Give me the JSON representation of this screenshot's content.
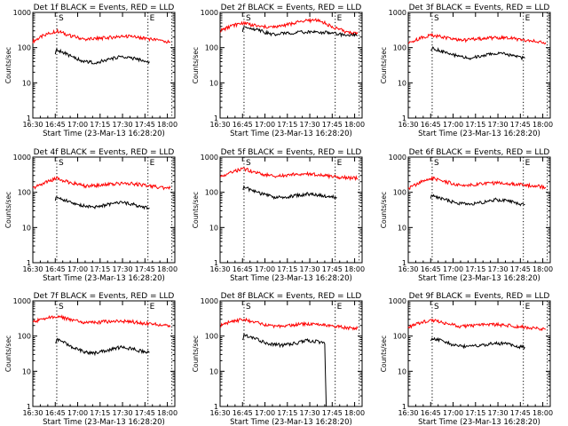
{
  "chart_data": [
    {
      "type": "line",
      "title": "Det 1f BLACK = Events, RED = LLD",
      "xlabel": "Start Time (23-Mar-13 16:28:20)",
      "ylabel": "Counts/sec",
      "xlim": [
        "16:30",
        "18:05"
      ],
      "ylim": [
        1,
        1000
      ],
      "yscale": "log",
      "grid": false,
      "x_ticks": [
        "16:30",
        "16:45",
        "17:00",
        "17:15",
        "17:30",
        "17:45",
        "18:00"
      ],
      "y_ticks": [
        "1",
        "10",
        "100",
        "1000"
      ],
      "markers": [
        {
          "label": "S",
          "time": "16:46"
        },
        {
          "label": "E",
          "time": "17:47"
        }
      ],
      "series": [
        {
          "color": "#ff0000",
          "times": [
            "16:30",
            "16:38",
            "16:46",
            "16:55",
            "17:05",
            "17:15",
            "17:25",
            "17:35",
            "17:45",
            "17:55",
            "18:02"
          ],
          "values": [
            150,
            230,
            300,
            220,
            170,
            185,
            200,
            210,
            185,
            160,
            140
          ]
        },
        {
          "color": "#000000",
          "times": [
            "16:45",
            "16:46",
            "16:50",
            "16:58",
            "17:05",
            "17:12",
            "17:20",
            "17:28",
            "17:35",
            "17:42",
            "17:48"
          ],
          "values": [
            70,
            85,
            75,
            50,
            40,
            38,
            45,
            55,
            52,
            45,
            40
          ]
        }
      ]
    },
    {
      "type": "line",
      "title": "Det 2f BLACK = Events, RED = LLD",
      "xlabel": "Start Time (23-Mar-13 16:28:20)",
      "ylabel": "Counts/sec",
      "xlim": [
        "16:30",
        "18:05"
      ],
      "ylim": [
        1,
        1000
      ],
      "yscale": "log",
      "grid": false,
      "x_ticks": [
        "16:30",
        "16:45",
        "17:00",
        "17:15",
        "17:30",
        "17:45",
        "18:00"
      ],
      "y_ticks": [
        "1",
        "10",
        "100",
        "1000"
      ],
      "markers": [
        {
          "label": "S",
          "time": "16:46"
        },
        {
          "label": "E",
          "time": "17:47"
        }
      ],
      "series": [
        {
          "color": "#ff0000",
          "times": [
            "16:30",
            "16:38",
            "16:46",
            "16:55",
            "17:05",
            "17:15",
            "17:25",
            "17:35",
            "17:45",
            "17:55",
            "18:02"
          ],
          "values": [
            300,
            420,
            520,
            400,
            380,
            450,
            560,
            620,
            400,
            270,
            250
          ]
        },
        {
          "color": "#000000",
          "times": [
            "16:45",
            "16:46",
            "16:50",
            "16:58",
            "17:05",
            "17:12",
            "17:20",
            "17:28",
            "17:35",
            "17:42",
            "17:48",
            "17:55",
            "18:02"
          ],
          "values": [
            290,
            360,
            360,
            290,
            240,
            250,
            270,
            280,
            280,
            265,
            245,
            230,
            220
          ]
        }
      ]
    },
    {
      "type": "line",
      "title": "Det 3f BLACK = Events, RED = LLD",
      "xlabel": "Start Time (23-Mar-13 16:28:20)",
      "ylabel": "Counts/sec",
      "xlim": [
        "16:30",
        "18:05"
      ],
      "ylim": [
        1,
        1000
      ],
      "yscale": "log",
      "grid": false,
      "x_ticks": [
        "16:30",
        "16:45",
        "17:00",
        "17:15",
        "17:30",
        "17:45",
        "18:00"
      ],
      "y_ticks": [
        "1",
        "10",
        "100",
        "1000"
      ],
      "markers": [
        {
          "label": "S",
          "time": "16:46"
        },
        {
          "label": "E",
          "time": "17:47"
        }
      ],
      "series": [
        {
          "color": "#ff0000",
          "times": [
            "16:30",
            "16:38",
            "16:46",
            "16:55",
            "17:05",
            "17:15",
            "17:25",
            "17:35",
            "17:45",
            "17:55",
            "18:02"
          ],
          "values": [
            130,
            190,
            230,
            190,
            160,
            175,
            190,
            195,
            170,
            150,
            140
          ]
        },
        {
          "color": "#000000",
          "times": [
            "16:45",
            "16:46",
            "16:50",
            "16:58",
            "17:05",
            "17:12",
            "17:20",
            "17:28",
            "17:35",
            "17:42",
            "17:48"
          ],
          "values": [
            85,
            100,
            85,
            65,
            55,
            50,
            60,
            70,
            65,
            55,
            50
          ]
        }
      ]
    },
    {
      "type": "line",
      "title": "Det 4f BLACK = Events, RED = LLD",
      "xlabel": "Start Time (23-Mar-13 16:28:20)",
      "ylabel": "Counts/sec",
      "xlim": [
        "16:30",
        "18:05"
      ],
      "ylim": [
        1,
        1000
      ],
      "yscale": "log",
      "grid": false,
      "x_ticks": [
        "16:30",
        "16:45",
        "17:00",
        "17:15",
        "17:30",
        "17:45",
        "18:00"
      ],
      "y_ticks": [
        "1",
        "10",
        "100",
        "1000"
      ],
      "markers": [
        {
          "label": "S",
          "time": "16:46"
        },
        {
          "label": "E",
          "time": "17:47"
        }
      ],
      "series": [
        {
          "color": "#ff0000",
          "times": [
            "16:30",
            "16:38",
            "16:46",
            "16:55",
            "17:05",
            "17:15",
            "17:25",
            "17:35",
            "17:45",
            "17:55",
            "18:02"
          ],
          "values": [
            130,
            190,
            250,
            190,
            150,
            160,
            175,
            180,
            160,
            140,
            130
          ]
        },
        {
          "color": "#000000",
          "times": [
            "16:45",
            "16:46",
            "16:50",
            "16:58",
            "17:05",
            "17:12",
            "17:20",
            "17:28",
            "17:35",
            "17:42",
            "17:48"
          ],
          "values": [
            60,
            75,
            62,
            48,
            40,
            38,
            45,
            50,
            48,
            40,
            36
          ]
        }
      ]
    },
    {
      "type": "line",
      "title": "Det 5f BLACK = Events, RED = LLD",
      "xlabel": "Start Time (23-Mar-13 16:28:20)",
      "ylabel": "Counts/sec",
      "xlim": [
        "16:30",
        "18:05"
      ],
      "ylim": [
        1,
        1000
      ],
      "yscale": "log",
      "grid": false,
      "x_ticks": [
        "16:30",
        "16:45",
        "17:00",
        "17:15",
        "17:30",
        "17:45",
        "18:00"
      ],
      "y_ticks": [
        "1",
        "10",
        "100",
        "1000"
      ],
      "markers": [
        {
          "label": "S",
          "time": "16:46"
        },
        {
          "label": "E",
          "time": "17:47"
        }
      ],
      "series": [
        {
          "color": "#ff0000",
          "times": [
            "16:30",
            "16:38",
            "16:46",
            "16:55",
            "17:05",
            "17:15",
            "17:25",
            "17:35",
            "17:45",
            "17:55",
            "18:02"
          ],
          "values": [
            270,
            380,
            470,
            350,
            290,
            310,
            340,
            320,
            280,
            260,
            250
          ]
        },
        {
          "color": "#000000",
          "times": [
            "16:45",
            "16:46",
            "16:50",
            "16:58",
            "17:05",
            "17:12",
            "17:20",
            "17:28",
            "17:35",
            "17:42",
            "17:48"
          ],
          "values": [
            110,
            140,
            120,
            90,
            75,
            70,
            80,
            90,
            85,
            78,
            72
          ]
        }
      ]
    },
    {
      "type": "line",
      "title": "Det 6f BLACK = Events, RED = LLD",
      "xlabel": "Start Time (23-Mar-13 16:28:20)",
      "ylabel": "Counts/sec",
      "xlim": [
        "16:30",
        "18:05"
      ],
      "ylim": [
        1,
        1000
      ],
      "yscale": "log",
      "grid": false,
      "x_ticks": [
        "16:30",
        "16:45",
        "17:00",
        "17:15",
        "17:30",
        "17:45",
        "18:00"
      ],
      "y_ticks": [
        "1",
        "10",
        "100",
        "1000"
      ],
      "markers": [
        {
          "label": "S",
          "time": "16:46"
        },
        {
          "label": "E",
          "time": "17:47"
        }
      ],
      "series": [
        {
          "color": "#ff0000",
          "times": [
            "16:30",
            "16:38",
            "16:46",
            "16:55",
            "17:05",
            "17:15",
            "17:25",
            "17:35",
            "17:45",
            "17:55",
            "18:02"
          ],
          "values": [
            130,
            190,
            250,
            200,
            160,
            170,
            185,
            180,
            165,
            150,
            140
          ]
        },
        {
          "color": "#000000",
          "times": [
            "16:45",
            "16:46",
            "16:50",
            "16:58",
            "17:05",
            "17:12",
            "17:20",
            "17:28",
            "17:35",
            "17:42",
            "17:48"
          ],
          "values": [
            70,
            85,
            72,
            55,
            48,
            45,
            52,
            62,
            58,
            50,
            45
          ]
        }
      ]
    },
    {
      "type": "line",
      "title": "Det 7f BLACK = Events, RED = LLD",
      "xlabel": "Start Time (23-Mar-13 16:28:20)",
      "ylabel": "Counts/sec",
      "xlim": [
        "16:30",
        "18:05"
      ],
      "ylim": [
        1,
        1000
      ],
      "yscale": "log",
      "grid": false,
      "x_ticks": [
        "16:30",
        "16:45",
        "17:00",
        "17:15",
        "17:30",
        "17:45",
        "18:00"
      ],
      "y_ticks": [
        "1",
        "10",
        "100",
        "1000"
      ],
      "markers": [
        {
          "label": "S",
          "time": "16:46"
        },
        {
          "label": "E",
          "time": "17:47"
        }
      ],
      "series": [
        {
          "color": "#ff0000",
          "times": [
            "16:30",
            "16:38",
            "16:46",
            "16:55",
            "17:05",
            "17:15",
            "17:25",
            "17:35",
            "17:45",
            "17:55",
            "18:02"
          ],
          "values": [
            250,
            320,
            370,
            300,
            240,
            250,
            270,
            260,
            230,
            210,
            200
          ]
        },
        {
          "color": "#000000",
          "times": [
            "16:45",
            "16:46",
            "16:50",
            "16:58",
            "17:05",
            "17:12",
            "17:20",
            "17:28",
            "17:35",
            "17:42",
            "17:48"
          ],
          "values": [
            65,
            80,
            68,
            45,
            35,
            33,
            40,
            48,
            45,
            38,
            34
          ]
        }
      ]
    },
    {
      "type": "line",
      "title": "Det 8f BLACK = Events, RED = LLD",
      "xlabel": "Start Time (23-Mar-13 16:28:20)",
      "ylabel": "Counts/sec",
      "xlim": [
        "16:30",
        "18:05"
      ],
      "ylim": [
        1,
        1000
      ],
      "yscale": "log",
      "grid": false,
      "x_ticks": [
        "16:30",
        "16:45",
        "17:00",
        "17:15",
        "17:30",
        "17:45",
        "18:00"
      ],
      "y_ticks": [
        "1",
        "10",
        "100",
        "1000"
      ],
      "markers": [
        {
          "label": "S",
          "time": "16:46"
        },
        {
          "label": "E",
          "time": "17:47"
        }
      ],
      "series": [
        {
          "color": "#ff0000",
          "times": [
            "16:30",
            "16:38",
            "16:46",
            "16:55",
            "17:05",
            "17:15",
            "17:25",
            "17:35",
            "17:45",
            "17:55",
            "18:02"
          ],
          "values": [
            200,
            260,
            300,
            240,
            190,
            200,
            220,
            210,
            190,
            175,
            165
          ]
        },
        {
          "color": "#000000",
          "times": [
            "16:45",
            "16:46",
            "16:50",
            "16:58",
            "17:05",
            "17:12",
            "17:20",
            "17:28",
            "17:35",
            "17:40",
            "17:41",
            "17:42"
          ],
          "values": [
            75,
            105,
            95,
            70,
            58,
            55,
            62,
            75,
            70,
            60,
            1,
            1
          ]
        }
      ]
    },
    {
      "type": "line",
      "title": "Det 9f BLACK = Events, RED = LLD",
      "xlabel": "Start Time (23-Mar-13 16:28:20)",
      "ylabel": "Counts/sec",
      "xlim": [
        "16:30",
        "18:05"
      ],
      "ylim": [
        1,
        1000
      ],
      "yscale": "log",
      "grid": false,
      "x_ticks": [
        "16:30",
        "16:45",
        "17:00",
        "17:15",
        "17:30",
        "17:45",
        "18:00"
      ],
      "y_ticks": [
        "1",
        "10",
        "100",
        "1000"
      ],
      "markers": [
        {
          "label": "S",
          "time": "16:46"
        },
        {
          "label": "E",
          "time": "17:47"
        }
      ],
      "series": [
        {
          "color": "#ff0000",
          "times": [
            "16:30",
            "16:38",
            "16:46",
            "16:55",
            "17:05",
            "17:15",
            "17:25",
            "17:35",
            "17:45",
            "17:55",
            "18:02"
          ],
          "values": [
            180,
            240,
            280,
            230,
            190,
            200,
            215,
            205,
            185,
            165,
            155
          ]
        },
        {
          "color": "#000000",
          "times": [
            "16:45",
            "16:46",
            "16:50",
            "16:58",
            "17:05",
            "17:12",
            "17:20",
            "17:28",
            "17:35",
            "17:42",
            "17:48"
          ],
          "values": [
            70,
            90,
            80,
            60,
            52,
            50,
            56,
            64,
            60,
            52,
            48
          ]
        }
      ]
    }
  ]
}
